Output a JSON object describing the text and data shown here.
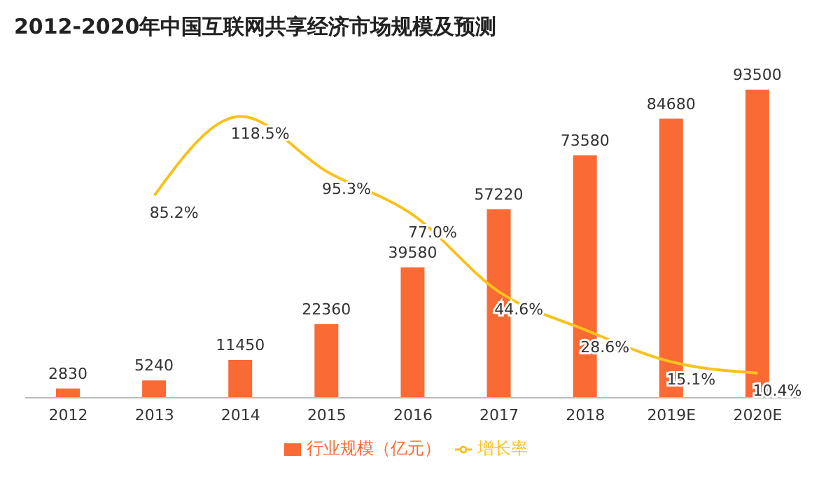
{
  "chart_data": {
    "type": "bar",
    "title": "2012-2020年中国互联网共享经济市场规模及预测",
    "categories": [
      "2012",
      "2013",
      "2014",
      "2015",
      "2016",
      "2017",
      "2018",
      "2019E",
      "2020E"
    ],
    "series": [
      {
        "name": "行业规模（亿元）",
        "color": "#f96a35",
        "values": [
          2830,
          5240,
          11450,
          22360,
          39580,
          57220,
          73580,
          84680,
          93500
        ]
      },
      {
        "name": "增长率",
        "type": "line",
        "axis": "y2",
        "color": "#f8c21c",
        "values": [
          null,
          85.2,
          118.5,
          95.3,
          77.0,
          44.6,
          28.6,
          15.1,
          10.4
        ],
        "value_labels": [
          null,
          "85.2%",
          "118.5%",
          "95.3%",
          "77.0%",
          "44.6%",
          "28.6%",
          "15.1%",
          "10.4%"
        ]
      }
    ],
    "tick_labels": "x",
    "data_labels": true,
    "legend": "bottom",
    "marker": "none"
  }
}
